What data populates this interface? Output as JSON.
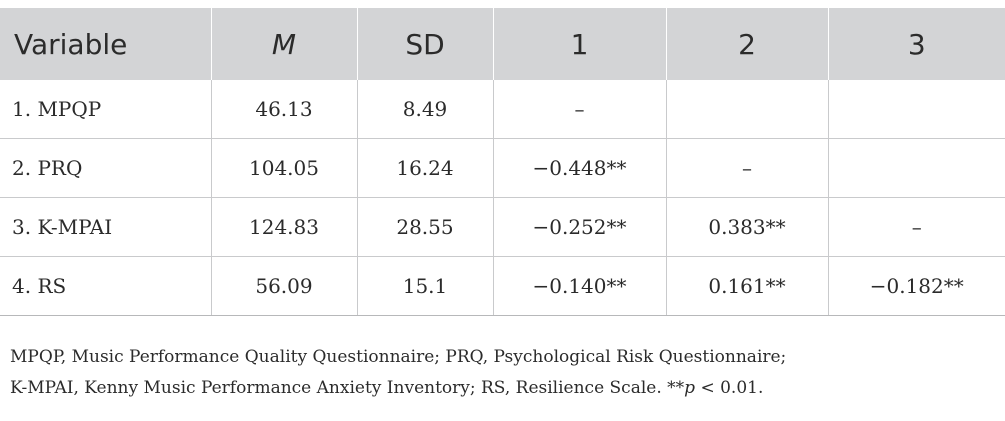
{
  "table": {
    "headers": [
      "Variable",
      "M",
      "SD",
      "1",
      "2",
      "3"
    ],
    "rows": [
      [
        "1. MPQP",
        "46.13",
        "8.49",
        "–",
        "",
        ""
      ],
      [
        "2. PRQ",
        "104.05",
        "16.24",
        "−0.448**",
        "–",
        ""
      ],
      [
        "3. K-MPAI",
        "124.83",
        "28.55",
        "−0.252**",
        "0.383**",
        "–"
      ],
      [
        "4. RS",
        "56.09",
        "15.1",
        "−0.140**",
        "0.161**",
        "−0.182**"
      ]
    ]
  },
  "footnote": {
    "line1": "MPQP, Music Performance Quality Questionnaire; PRQ, Psychological Risk Questionnaire;",
    "line2_prefix": "K-MPAI, Kenny Music Performance Anxiety Inventory; RS, Resilience Scale. **",
    "p_symbol": "p",
    "line2_suffix": " < 0.01."
  }
}
